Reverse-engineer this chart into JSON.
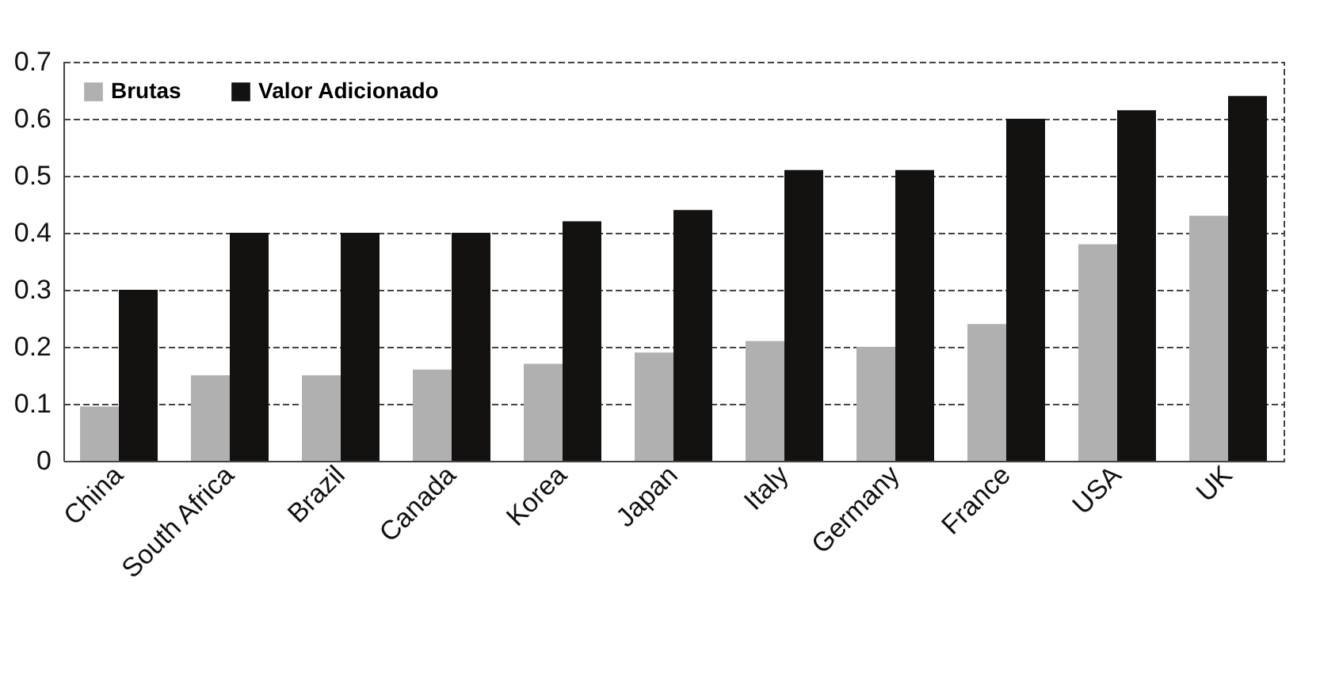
{
  "chart_data": {
    "type": "bar",
    "categories": [
      "China",
      "South Africa",
      "Brazil",
      "Canada",
      "Korea",
      "Japan",
      "Italy",
      "Germany",
      "France",
      "USA",
      "UK"
    ],
    "series": [
      {
        "name": "Brutas",
        "color": "#b0b0b0",
        "values": [
          0.095,
          0.15,
          0.15,
          0.16,
          0.17,
          0.19,
          0.21,
          0.2,
          0.24,
          0.38,
          0.43
        ]
      },
      {
        "name": "Valor Adicionado",
        "color": "#141210",
        "values": [
          0.3,
          0.4,
          0.4,
          0.4,
          0.42,
          0.44,
          0.51,
          0.51,
          0.6,
          0.615,
          0.64
        ]
      }
    ],
    "ylim": [
      0,
      0.7
    ],
    "yticks": [
      0,
      0.1,
      0.2,
      0.3,
      0.4,
      0.5,
      0.6,
      0.7
    ],
    "grid": "y",
    "legend": "top left"
  }
}
